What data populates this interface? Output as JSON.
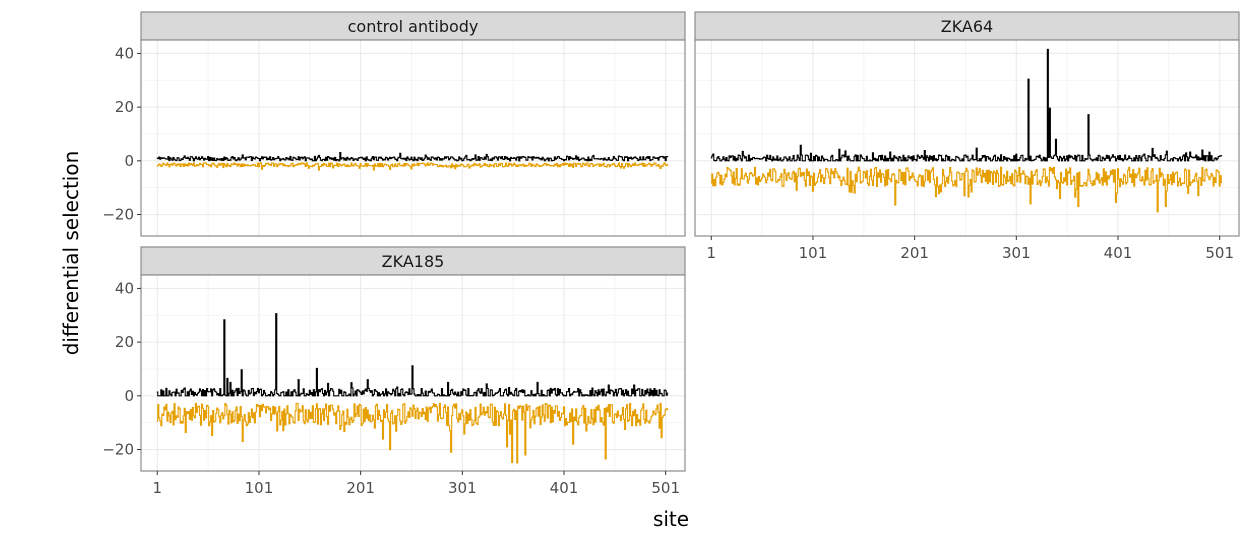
{
  "chart_data": {
    "type": "line",
    "xlabel": "site",
    "ylabel": "differential selection",
    "xlim": [
      -15,
      520
    ],
    "ylim": [
      -28,
      45
    ],
    "x_ticks": [
      1,
      101,
      201,
      301,
      401,
      501
    ],
    "y_ticks": [
      -20,
      0,
      20,
      40
    ],
    "grid": true,
    "legend": "none",
    "series_colors": {
      "positive": "#000000",
      "negative": "#E69F00"
    },
    "panels": [
      {
        "title": "control antibody",
        "site_range": [
          1,
          503
        ],
        "positive": {
          "base": 0.8,
          "noise": 1.2,
          "spikes": [
            [
              85,
              2.2
            ],
            [
              160,
              2.0
            ],
            [
              240,
              2.8
            ],
            [
              325,
              2.4
            ],
            [
              430,
              2.0
            ]
          ]
        },
        "negative": {
          "base": -1.5,
          "noise": 1.2,
          "spikes": [
            [
              150,
              -2.8
            ],
            [
              290,
              -2.6
            ],
            [
              410,
              -2.4
            ]
          ]
        }
      },
      {
        "title": "ZKA64",
        "site_range": [
          1,
          503
        ],
        "positive": {
          "base": 0.7,
          "noise": 2.2,
          "spikes": [
            [
              3,
              2.5
            ],
            [
              32,
              3.5
            ],
            [
              89,
              5.8
            ],
            [
              160,
              3.0
            ],
            [
              313,
              30.4
            ],
            [
              332,
              41.5
            ],
            [
              334,
              19.6
            ],
            [
              340,
              8.0
            ],
            [
              372,
              17.2
            ],
            [
              435,
              4.6
            ],
            [
              449,
              3.6
            ],
            [
              491,
              3.2
            ]
          ]
        },
        "negative": {
          "base": -6.0,
          "noise": 6.0,
          "spikes": [
            [
              85,
              -11
            ],
            [
              142,
              -12
            ],
            [
              182,
              -16.5
            ],
            [
              250,
              -13
            ],
            [
              315,
              -16
            ],
            [
              344,
              -14
            ],
            [
              362,
              -17
            ],
            [
              400,
              -12
            ],
            [
              440,
              -19
            ],
            [
              448,
              -17
            ],
            [
              480,
              -13
            ]
          ]
        }
      },
      {
        "title": "ZKA185",
        "site_range": [
          1,
          503
        ],
        "positive": {
          "base": 0.8,
          "noise": 2.8,
          "spikes": [
            [
              67,
              28.3
            ],
            [
              70,
              6.5
            ],
            [
              73,
              5.0
            ],
            [
              84,
              9.7
            ],
            [
              118,
              30.6
            ],
            [
              140,
              6.0
            ],
            [
              158,
              10.2
            ],
            [
              208,
              6.0
            ],
            [
              252,
              11.2
            ],
            [
              287,
              5.0
            ],
            [
              375,
              5.0
            ],
            [
              445,
              4.0
            ],
            [
              470,
              4.0
            ]
          ]
        },
        "negative": {
          "base": -7.0,
          "noise": 7.0,
          "spikes": [
            [
              85,
              -17
            ],
            [
              125,
              -13
            ],
            [
              230,
              -20
            ],
            [
              290,
              -21
            ],
            [
              345,
              -19
            ],
            [
              350,
              -24.8
            ],
            [
              355,
              -25
            ],
            [
              363,
              -22
            ],
            [
              410,
              -18
            ],
            [
              442,
              -23.5
            ],
            [
              495,
              -12
            ]
          ]
        }
      }
    ]
  }
}
